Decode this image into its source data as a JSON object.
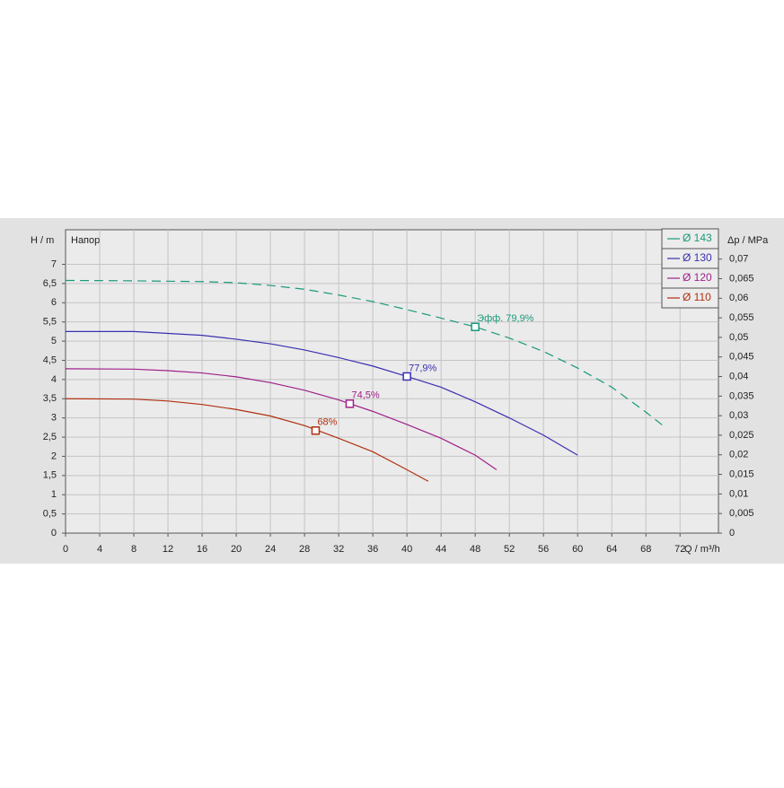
{
  "chart_data": {
    "type": "line",
    "y_label": "H / m",
    "y_title": "Напор",
    "y2_label": "Δp / MPa",
    "x_label": "Q / m³/h",
    "xlim": [
      0,
      76.5
    ],
    "xticks": [
      0,
      4,
      8,
      12,
      16,
      20,
      24,
      28,
      32,
      36,
      40,
      44,
      48,
      52,
      56,
      60,
      64,
      68,
      72
    ],
    "ylim": [
      0,
      7.9
    ],
    "yticks": [
      0,
      {
        "value": 0.5,
        "label": "0,5"
      },
      1,
      {
        "value": 1.5,
        "label": "1,5"
      },
      2,
      {
        "value": 2.5,
        "label": "2,5"
      },
      3,
      {
        "value": 3.5,
        "label": "3,5"
      },
      4,
      {
        "value": 4.5,
        "label": "4,5"
      },
      5,
      {
        "value": 5.5,
        "label": "5,5"
      },
      6,
      {
        "value": 6.5,
        "label": "6,5"
      },
      7
    ],
    "y2lim": [
      0,
      0.0775
    ],
    "y2ticks": [
      0,
      {
        "value": 0.005,
        "label": "0,005"
      },
      {
        "value": 0.01,
        "label": "0,01"
      },
      {
        "value": 0.015,
        "label": "0,015"
      },
      {
        "value": 0.02,
        "label": "0,02"
      },
      {
        "value": 0.025,
        "label": "0,025"
      },
      {
        "value": 0.03,
        "label": "0,03"
      },
      {
        "value": 0.035,
        "label": "0,035"
      },
      {
        "value": 0.04,
        "label": "0,04"
      },
      {
        "value": 0.045,
        "label": "0,045"
      },
      {
        "value": 0.05,
        "label": "0,05"
      },
      {
        "value": 0.055,
        "label": "0,055"
      },
      {
        "value": 0.06,
        "label": "0,06"
      },
      {
        "value": 0.065,
        "label": "0,065"
      },
      {
        "value": 0.07,
        "label": "0,07"
      }
    ],
    "grid": true,
    "series": [
      {
        "name": "Ø 143",
        "color": "#1a9a7a",
        "dashed": true,
        "x": [
          0,
          8,
          16,
          20,
          24,
          28,
          32,
          36,
          40,
          44,
          48,
          52,
          56,
          60,
          64,
          68,
          70
        ],
        "values": [
          6.58,
          6.57,
          6.55,
          6.52,
          6.45,
          6.35,
          6.2,
          6.03,
          5.82,
          5.6,
          5.37,
          5.08,
          4.73,
          4.3,
          3.8,
          3.15,
          2.8
        ],
        "bep": {
          "x": 48,
          "y": 5.37,
          "label": "Эфф.  79,9%"
        }
      },
      {
        "name": "Ø 130",
        "color": "#3a2fb0",
        "dashed": false,
        "x": [
          0,
          8,
          12,
          16,
          20,
          24,
          28,
          32,
          36,
          40,
          44,
          48,
          52,
          56,
          60
        ],
        "values": [
          5.25,
          5.25,
          5.2,
          5.15,
          5.05,
          4.93,
          4.77,
          4.57,
          4.35,
          4.08,
          3.8,
          3.42,
          3.0,
          2.55,
          2.03
        ],
        "bep": {
          "x": 40,
          "y": 4.08,
          "label": "77,9%"
        }
      },
      {
        "name": "Ø 120",
        "color": "#a0208a",
        "dashed": false,
        "x": [
          0,
          8,
          12,
          16,
          20,
          24,
          28,
          32,
          36,
          40,
          44,
          48,
          50.5
        ],
        "values": [
          4.28,
          4.27,
          4.23,
          4.17,
          4.07,
          3.92,
          3.72,
          3.47,
          3.17,
          2.83,
          2.47,
          2.03,
          1.65
        ],
        "bep": {
          "x": 33.3,
          "y": 3.37,
          "label": "74,5%"
        }
      },
      {
        "name": "Ø 110",
        "color": "#b03010",
        "dashed": false,
        "x": [
          0,
          8,
          12,
          16,
          20,
          24,
          28,
          32,
          36,
          40,
          42.5
        ],
        "values": [
          3.5,
          3.49,
          3.44,
          3.35,
          3.22,
          3.05,
          2.8,
          2.47,
          2.12,
          1.65,
          1.35
        ],
        "bep": {
          "x": 29.3,
          "y": 2.67,
          "label": "68%"
        }
      }
    ]
  }
}
